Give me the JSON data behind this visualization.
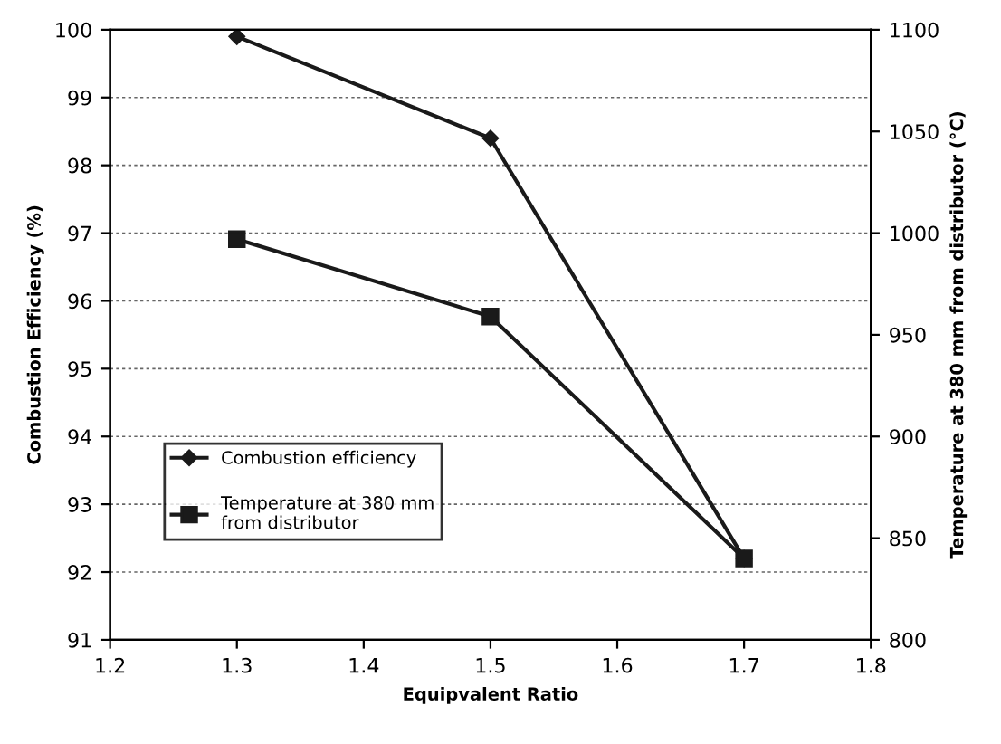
{
  "chart_data": {
    "type": "line",
    "xlabel": "Equipvalent Ratio",
    "ylabel": "Combustion Efficiency (%)",
    "y2label": "Temperature at 380 mm from distributor (°C)",
    "x": [
      1.3,
      1.5,
      1.7
    ],
    "series": [
      {
        "name": "Combustion efficiency",
        "color": "#1a1a1a",
        "values": [
          99.9,
          98.4,
          92.2
        ],
        "marker": "diamond"
      },
      {
        "name": "Temperature at 380 mm\nfrom distributor",
        "color": "#1a1a1a",
        "values": [
          997,
          959,
          840
        ],
        "marker": "square",
        "axis": "y2"
      }
    ],
    "xlim": [
      1.2,
      1.8
    ],
    "xticks": [
      1.2,
      1.3,
      1.4,
      1.5,
      1.6,
      1.7,
      1.8
    ],
    "ylim": [
      91,
      100
    ],
    "yticks": [
      91,
      92,
      93,
      94,
      95,
      96,
      97,
      98,
      99,
      100
    ],
    "y2lim": [
      800,
      1100
    ],
    "y2ticks": [
      800,
      850,
      900,
      950,
      1000,
      1050,
      1100
    ],
    "grid": "y",
    "legend": "lower left",
    "line_style": "solid"
  }
}
